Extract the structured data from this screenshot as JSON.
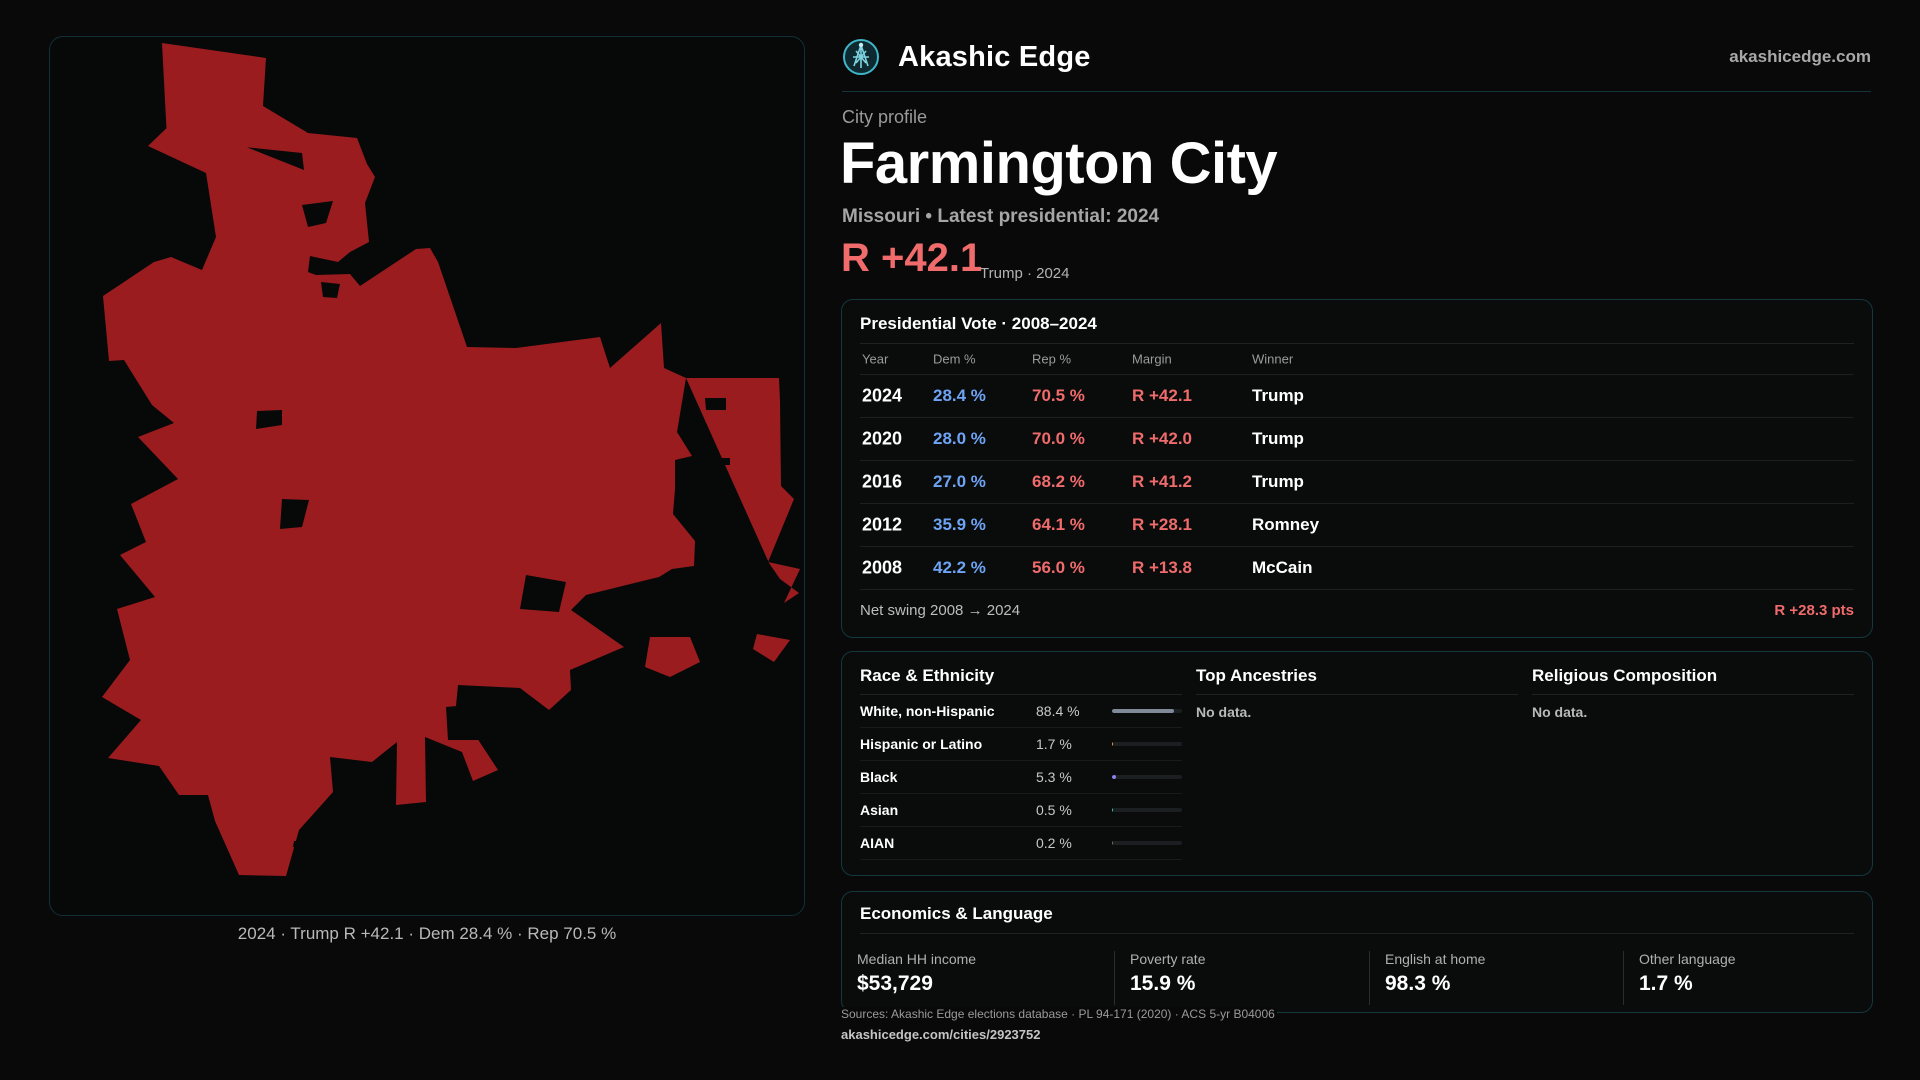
{
  "brand": {
    "name": "Akashic Edge",
    "site": "akashicedge.com",
    "logo_icon": "akashic-edge-logo-icon"
  },
  "profile": {
    "eyebrow": "City profile",
    "city": "Farmington City",
    "subline": "Missouri • Latest presidential: 2024",
    "margin": "R +42.1",
    "margin_note": "Trump · 2024"
  },
  "map": {
    "caption": "2024 · Trump R +42.1 · Dem 28.4 % · Rep 70.5 %",
    "fill_color": "#9b1c1f"
  },
  "votes": {
    "title": "Presidential Vote · 2008–2024",
    "headers": {
      "year": "Year",
      "dem": "Dem %",
      "rep": "Rep %",
      "margin": "Margin",
      "winner": "Winner"
    },
    "rows": [
      {
        "year": "2024",
        "dem": "28.4 %",
        "rep": "70.5 %",
        "margin": "R +42.1",
        "winner": "Trump"
      },
      {
        "year": "2020",
        "dem": "28.0 %",
        "rep": "70.0 %",
        "margin": "R +42.0",
        "winner": "Trump"
      },
      {
        "year": "2016",
        "dem": "27.0 %",
        "rep": "68.2 %",
        "margin": "R +41.2",
        "winner": "Trump"
      },
      {
        "year": "2012",
        "dem": "35.9 %",
        "rep": "64.1 %",
        "margin": "R +28.1",
        "winner": "Romney"
      },
      {
        "year": "2008",
        "dem": "42.2 %",
        "rep": "56.0 %",
        "margin": "R +13.8",
        "winner": "McCain"
      }
    ],
    "swing_label": "Net swing 2008 → 2024",
    "swing_value": "R +28.3 pts"
  },
  "race": {
    "title": "Race & Ethnicity",
    "rows": [
      {
        "label": "White, non-Hispanic",
        "pct": "88.4 %",
        "share": 0.884,
        "color": "#7f8a99"
      },
      {
        "label": "Hispanic or Latino",
        "pct": "1.7 %",
        "share": 0.017,
        "color": "#e0a33a"
      },
      {
        "label": "Black",
        "pct": "5.3 %",
        "share": 0.053,
        "color": "#8a82f0"
      },
      {
        "label": "Asian",
        "pct": "0.5 %",
        "share": 0.005,
        "color": "#3fbf9a"
      },
      {
        "label": "AIAN",
        "pct": "0.2 %",
        "share": 0.002,
        "color": "#7c6a55"
      }
    ]
  },
  "ancestries": {
    "title": "Top Ancestries",
    "empty": "No data."
  },
  "religion": {
    "title": "Religious Composition",
    "empty": "No data."
  },
  "economics": {
    "title": "Economics & Language",
    "stats": [
      {
        "label": "Median HH income",
        "value": "$53,729"
      },
      {
        "label": "Poverty rate",
        "value": "15.9 %"
      },
      {
        "label": "English at home",
        "value": "98.3 %"
      },
      {
        "label": "Other language",
        "value": "1.7 %"
      }
    ]
  },
  "footer": {
    "sources": "Sources: Akashic Edge elections database · PL 94-171 (2020) · ACS 5-yr B04006",
    "url": "akashicedge.com/cities/2923752"
  }
}
